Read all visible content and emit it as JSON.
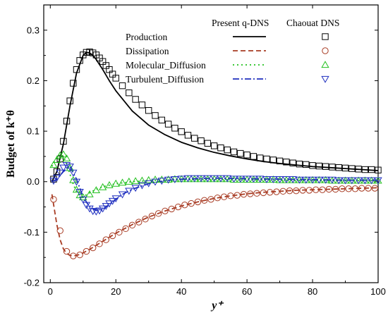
{
  "chart_data": {
    "type": "line",
    "xlabel": "y⁺",
    "ylabel": "Budget of k⁺θ",
    "xlim": [
      -2,
      100
    ],
    "ylim": [
      -0.2,
      0.35
    ],
    "x_ticks": [
      0,
      20,
      40,
      60,
      80,
      100
    ],
    "x_tick_labels": [
      "0",
      "20",
      "40",
      "60",
      "80",
      "100"
    ],
    "y_ticks": [
      -0.2,
      -0.1,
      0.0,
      0.1,
      0.2,
      0.3
    ],
    "y_tick_labels": [
      "-0.2",
      "-0.1",
      "0.0",
      "0.1",
      "0.2",
      "0.3"
    ],
    "legend": {
      "placement": "top-right",
      "header_lines": "Present q-DNS",
      "header_markers": "Chaouat DNS"
    },
    "series": [
      {
        "name": "Production",
        "color": "#000000",
        "dash": "solid",
        "marker": "square",
        "line": {
          "x": [
            0.5,
            2,
            4,
            6,
            8,
            10,
            11,
            12,
            13,
            14,
            16,
            18,
            20,
            25,
            30,
            35,
            40,
            45,
            50,
            55,
            60,
            65,
            70,
            75,
            80,
            85,
            90,
            95,
            100
          ],
          "y": [
            0.0,
            0.02,
            0.075,
            0.15,
            0.215,
            0.25,
            0.256,
            0.255,
            0.25,
            0.242,
            0.222,
            0.2,
            0.18,
            0.14,
            0.112,
            0.093,
            0.078,
            0.067,
            0.058,
            0.051,
            0.045,
            0.04,
            0.036,
            0.033,
            0.03,
            0.028,
            0.026,
            0.024,
            0.022
          ]
        },
        "markers": {
          "x": [
            1,
            2,
            3,
            4,
            5,
            6,
            7,
            8,
            9,
            10,
            11,
            12,
            13,
            14,
            15,
            16,
            17,
            18,
            19,
            20,
            22,
            24,
            26,
            28,
            30,
            32,
            34,
            36,
            38,
            40,
            42,
            44,
            46,
            48,
            50,
            52,
            54,
            56,
            58,
            60,
            62,
            64,
            66,
            68,
            70,
            72,
            74,
            76,
            78,
            80,
            82,
            84,
            86,
            88,
            90,
            92,
            94,
            96,
            98,
            100
          ],
          "y": [
            0.005,
            0.02,
            0.045,
            0.08,
            0.12,
            0.16,
            0.195,
            0.222,
            0.24,
            0.251,
            0.256,
            0.257,
            0.255,
            0.251,
            0.245,
            0.238,
            0.23,
            0.222,
            0.213,
            0.205,
            0.19,
            0.176,
            0.163,
            0.152,
            0.141,
            0.131,
            0.122,
            0.114,
            0.106,
            0.099,
            0.092,
            0.086,
            0.081,
            0.076,
            0.071,
            0.067,
            0.063,
            0.059,
            0.056,
            0.053,
            0.05,
            0.047,
            0.045,
            0.043,
            0.041,
            0.039,
            0.037,
            0.035,
            0.034,
            0.032,
            0.031,
            0.03,
            0.029,
            0.028,
            0.027,
            0.026,
            0.025,
            0.024,
            0.024,
            0.023
          ]
        }
      },
      {
        "name": "Dissipation",
        "color": "#a83c24",
        "dash": "dash",
        "marker": "circle",
        "line": {
          "x": [
            0.5,
            1,
            2,
            3,
            4,
            5,
            6,
            7,
            8,
            9,
            10,
            12,
            14,
            16,
            18,
            20,
            25,
            30,
            35,
            40,
            45,
            50,
            55,
            60,
            65,
            70,
            75,
            80,
            85,
            90,
            95,
            100
          ],
          "y": [
            -0.025,
            -0.045,
            -0.085,
            -0.115,
            -0.133,
            -0.142,
            -0.146,
            -0.147,
            -0.146,
            -0.144,
            -0.141,
            -0.134,
            -0.126,
            -0.118,
            -0.11,
            -0.102,
            -0.085,
            -0.07,
            -0.058,
            -0.048,
            -0.04,
            -0.033,
            -0.028,
            -0.024,
            -0.021,
            -0.019,
            -0.017,
            -0.016,
            -0.015,
            -0.014,
            -0.013,
            -0.012
          ]
        },
        "markers": {
          "x": [
            1,
            3,
            5,
            7,
            9,
            11,
            13,
            15,
            17,
            19,
            21,
            23,
            25,
            27,
            29,
            31,
            33,
            35,
            37,
            39,
            41,
            43,
            45,
            47,
            49,
            51,
            53,
            55,
            57,
            59,
            61,
            63,
            65,
            67,
            69,
            71,
            73,
            75,
            77,
            79,
            81,
            83,
            85,
            87,
            89,
            91,
            93,
            95,
            97,
            99
          ],
          "y": [
            -0.035,
            -0.097,
            -0.138,
            -0.147,
            -0.145,
            -0.138,
            -0.131,
            -0.123,
            -0.115,
            -0.107,
            -0.1,
            -0.093,
            -0.086,
            -0.08,
            -0.074,
            -0.068,
            -0.063,
            -0.058,
            -0.054,
            -0.05,
            -0.046,
            -0.043,
            -0.04,
            -0.037,
            -0.035,
            -0.032,
            -0.03,
            -0.028,
            -0.027,
            -0.025,
            -0.024,
            -0.023,
            -0.022,
            -0.021,
            -0.02,
            -0.019,
            -0.018,
            -0.018,
            -0.017,
            -0.017,
            -0.016,
            -0.016,
            -0.015,
            -0.015,
            -0.014,
            -0.014,
            -0.014,
            -0.013,
            -0.013,
            -0.013
          ]
        }
      },
      {
        "name": "Molecular_Diffusion",
        "color": "#22c01e",
        "dash": "dot",
        "marker": "triangle-up",
        "line": {
          "x": [
            0.5,
            1,
            2,
            3,
            4,
            5,
            6,
            7,
            8,
            9,
            10,
            12,
            14,
            16,
            18,
            20,
            25,
            30,
            40,
            50,
            60,
            70,
            80,
            90,
            100
          ],
          "y": [
            0.03,
            0.037,
            0.048,
            0.054,
            0.05,
            0.035,
            0.015,
            -0.005,
            -0.02,
            -0.028,
            -0.03,
            -0.022,
            -0.015,
            -0.01,
            -0.007,
            -0.004,
            0.0,
            0.002,
            0.004,
            0.004,
            0.004,
            0.003,
            0.002,
            0.002,
            0.002
          ]
        },
        "markers": {
          "x": [
            1,
            2,
            3,
            4,
            5,
            6,
            7,
            8,
            9,
            10,
            12,
            14,
            16,
            18,
            20,
            22,
            24,
            26,
            28,
            30,
            32,
            34,
            36,
            38,
            40,
            42,
            44,
            46,
            48,
            50,
            52,
            54,
            56,
            58,
            60,
            62,
            64,
            66,
            68,
            70,
            72,
            74,
            76,
            78,
            80,
            82,
            84,
            86,
            88,
            90,
            92,
            94,
            96,
            98,
            100
          ],
          "y": [
            0.033,
            0.043,
            0.052,
            0.054,
            0.046,
            0.027,
            0.003,
            -0.016,
            -0.027,
            -0.031,
            -0.025,
            -0.017,
            -0.011,
            -0.007,
            -0.004,
            -0.002,
            0.0,
            0.001,
            0.002,
            0.003,
            0.004,
            0.004,
            0.004,
            0.005,
            0.005,
            0.005,
            0.005,
            0.005,
            0.005,
            0.005,
            0.005,
            0.005,
            0.004,
            0.004,
            0.004,
            0.004,
            0.004,
            0.004,
            0.004,
            0.003,
            0.003,
            0.003,
            0.003,
            0.003,
            0.003,
            0.003,
            0.003,
            0.002,
            0.002,
            0.002,
            0.002,
            0.002,
            0.002,
            0.002,
            0.002
          ]
        }
      },
      {
        "name": "Turbulent_Diffusion",
        "color": "#1f2fbf",
        "dash": "dashdot",
        "marker": "triangle-down",
        "line": {
          "x": [
            0.5,
            2,
            4,
            6,
            8,
            10,
            12,
            14,
            16,
            18,
            20,
            22,
            25,
            30,
            35,
            40,
            50,
            60,
            70,
            80,
            90,
            100
          ],
          "y": [
            0.0,
            0.005,
            0.02,
            0.03,
            0.005,
            -0.03,
            -0.05,
            -0.057,
            -0.055,
            -0.045,
            -0.035,
            -0.025,
            -0.015,
            -0.004,
            0.002,
            0.005,
            0.007,
            0.006,
            0.005,
            0.004,
            0.003,
            0.003
          ]
        },
        "markers": {
          "x": [
            1,
            2,
            3,
            4,
            5,
            6,
            7,
            8,
            9,
            10,
            11,
            12,
            13,
            14,
            15,
            16,
            17,
            18,
            19,
            20,
            22,
            24,
            26,
            28,
            30,
            32,
            34,
            36,
            38,
            40,
            42,
            44,
            46,
            48,
            50,
            52,
            54,
            56,
            58,
            60,
            62,
            64,
            66,
            68,
            70,
            72,
            74,
            76,
            78,
            80,
            82,
            84,
            86,
            88,
            90,
            92,
            94,
            96,
            98,
            100
          ],
          "y": [
            0.002,
            0.008,
            0.018,
            0.028,
            0.033,
            0.03,
            0.018,
            0.0,
            -0.02,
            -0.035,
            -0.046,
            -0.053,
            -0.058,
            -0.059,
            -0.057,
            -0.053,
            -0.048,
            -0.043,
            -0.038,
            -0.033,
            -0.025,
            -0.018,
            -0.012,
            -0.007,
            -0.003,
            0.0,
            0.002,
            0.004,
            0.005,
            0.006,
            0.007,
            0.007,
            0.007,
            0.007,
            0.007,
            0.007,
            0.007,
            0.006,
            0.006,
            0.006,
            0.006,
            0.006,
            0.005,
            0.005,
            0.005,
            0.005,
            0.005,
            0.004,
            0.004,
            0.004,
            0.004,
            0.004,
            0.004,
            0.003,
            0.003,
            0.003,
            0.003,
            0.003,
            0.003,
            0.003
          ]
        }
      }
    ]
  }
}
